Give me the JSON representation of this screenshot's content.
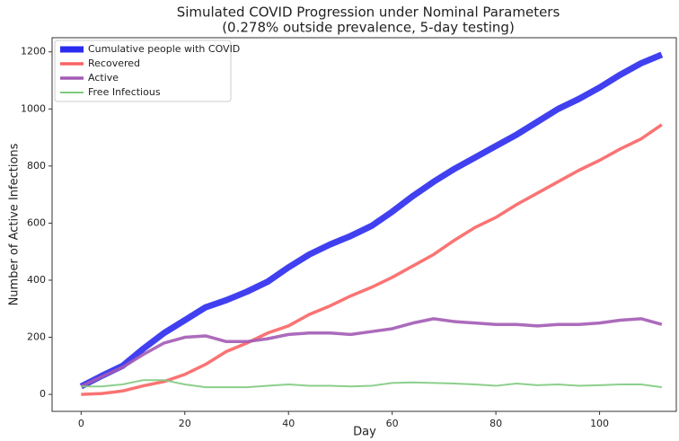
{
  "chart_data": {
    "type": "line",
    "title": [
      "Simulated COVID Progression under Nominal Parameters",
      "(0.278% outside prevalence, 5-day testing)"
    ],
    "x_label": "Day",
    "y_label": "Number of Active Infections",
    "x": [
      0,
      4,
      8,
      12,
      16,
      20,
      24,
      28,
      32,
      36,
      40,
      44,
      48,
      52,
      56,
      60,
      64,
      68,
      72,
      76,
      80,
      84,
      88,
      92,
      96,
      100,
      104,
      108,
      112
    ],
    "series": [
      {
        "name": "Cumulative people with COVID",
        "color": "#2b2bf0",
        "linewidth": 7,
        "values": [
          28,
          65,
          100,
          160,
          215,
          260,
          305,
          330,
          360,
          395,
          445,
          490,
          525,
          555,
          590,
          640,
          695,
          745,
          790,
          830,
          870,
          910,
          955,
          1000,
          1035,
          1075,
          1120,
          1160,
          1190
        ]
      },
      {
        "name": "Recovered",
        "color": "#f96464",
        "linewidth": 3.5,
        "values": [
          0,
          3,
          12,
          30,
          45,
          70,
          105,
          150,
          180,
          215,
          240,
          280,
          310,
          345,
          375,
          410,
          450,
          490,
          540,
          585,
          620,
          665,
          705,
          745,
          785,
          820,
          860,
          895,
          945
        ]
      },
      {
        "name": "Active",
        "color": "#a35bb5",
        "linewidth": 3.5,
        "values": [
          28,
          62,
          95,
          140,
          180,
          200,
          205,
          185,
          185,
          195,
          210,
          215,
          215,
          210,
          220,
          230,
          250,
          265,
          255,
          250,
          245,
          245,
          240,
          245,
          245,
          250,
          260,
          265,
          245
        ]
      },
      {
        "name": "Free Infectious",
        "color": "#7fca7f",
        "linewidth": 2,
        "values": [
          28,
          28,
          35,
          50,
          50,
          35,
          25,
          25,
          25,
          30,
          35,
          30,
          30,
          28,
          30,
          40,
          42,
          40,
          38,
          35,
          30,
          38,
          32,
          35,
          30,
          32,
          35,
          35,
          25
        ]
      }
    ],
    "xlim": [
      -5.6,
      114.8
    ],
    "ylim": [
      -59.5,
      1249.5
    ],
    "xticks": [
      0,
      20,
      40,
      60,
      80,
      100
    ],
    "yticks": [
      0,
      200,
      400,
      600,
      800,
      1000,
      1200
    ],
    "legend": "upper left"
  }
}
